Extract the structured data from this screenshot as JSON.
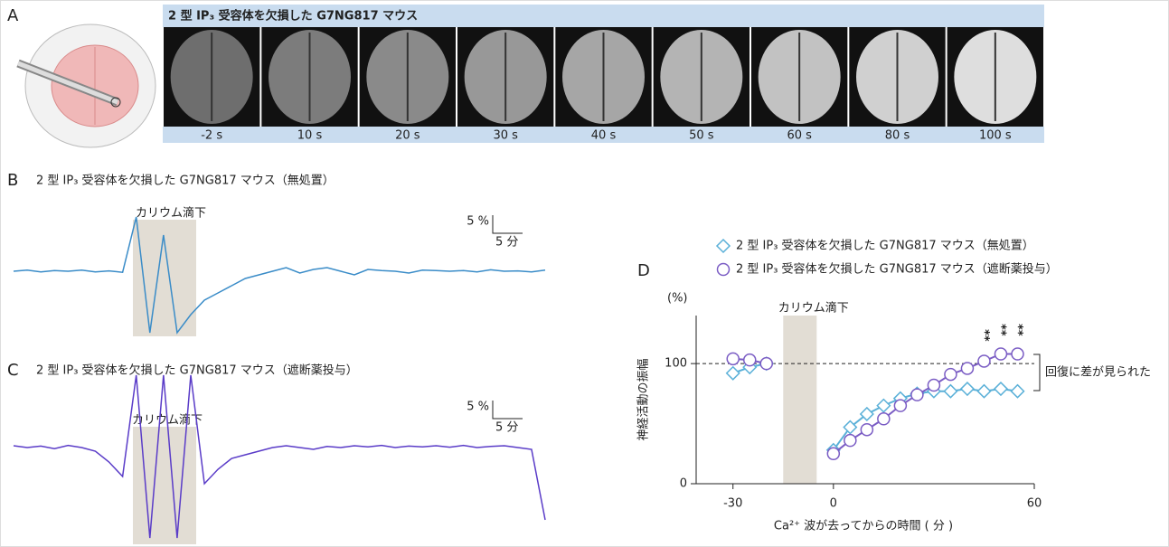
{
  "panel_a": {
    "label": "A",
    "title": "2 型 IP₃ 受容体を欠損した G7NG817 マウス",
    "frames": [
      "-2 s",
      "10 s",
      "20 s",
      "30 s",
      "40 s",
      "50 s",
      "60 s",
      "80 s",
      "100 s"
    ]
  },
  "panel_b": {
    "label": "B",
    "title": "2 型 IP₃ 受容体を欠損した G7NG817 マウス（無処置）",
    "stimulus": "カリウム滴下",
    "scale_y": "5 %",
    "scale_x": "5 分",
    "trace": [
      0,
      0.3,
      -0.2,
      0.2,
      0,
      0.3,
      -0.2,
      0.1,
      -0.3,
      15,
      -17,
      10,
      -17,
      -12,
      -8,
      -6,
      -4,
      -2,
      -1,
      0,
      1,
      -0.5,
      0.5,
      1,
      0,
      -1,
      0.5,
      0.2,
      0,
      -0.5,
      0.3,
      0.2,
      0,
      0.2,
      -0.2,
      0.4,
      0,
      0.1,
      -0.2,
      0.3
    ]
  },
  "panel_c": {
    "label": "C",
    "title": "2 型 IP₃ 受容体を欠損した G7NG817 マウス（遮断薬投与）",
    "stimulus": "カリウム滴下",
    "scale_y": "5 %",
    "scale_x": "5 分",
    "trace": [
      0.5,
      0,
      0.4,
      -0.3,
      0.6,
      0,
      -1,
      -4,
      -8,
      20,
      -25,
      20,
      -25,
      20,
      -10,
      -6,
      -3,
      -2,
      -1,
      0,
      0.5,
      0,
      -0.5,
      0.3,
      0,
      0.5,
      0.2,
      0.6,
      0,
      0.4,
      0.2,
      0.5,
      0.1,
      0.6,
      0,
      0.3,
      0.5,
      0,
      -0.5,
      -20
    ]
  },
  "chart_data": {
    "type": "line",
    "label": "D",
    "y_unit": "(%)",
    "ylabel": "神経活動の振幅",
    "xlabel": "Ca²⁺ 波が去ってからの時間 ( 分 )",
    "xlim": [
      -41,
      60
    ],
    "ylim": [
      0,
      140
    ],
    "xticks": [
      -30,
      0,
      60
    ],
    "yticks": [
      0,
      100
    ],
    "reference_line": 100,
    "stimulus": {
      "label": "カリウム滴下",
      "range": [
        -15,
        -5
      ]
    },
    "annotation": "回復に差が見られた",
    "significance": [
      {
        "x": 45,
        "label": "**"
      },
      {
        "x": 50,
        "label": "**"
      },
      {
        "x": 55,
        "label": "**"
      }
    ],
    "series": [
      {
        "name": "2 型 IP₃ 受容体を欠損した G7NG817 マウス（無処置）",
        "color": "#5ab0d8",
        "marker": "diamond",
        "x": [
          -30,
          -25,
          -20,
          0,
          5,
          10,
          15,
          20,
          25,
          30,
          35,
          40,
          45,
          50,
          55
        ],
        "values": [
          92,
          97,
          100,
          28,
          47,
          58,
          65,
          71,
          75,
          77,
          77,
          79,
          77,
          79,
          77
        ]
      },
      {
        "name": "2 型 IP₃ 受容体を欠損した G7NG817 マウス（遮断薬投与）",
        "color": "#7a5cc4",
        "marker": "circle",
        "x": [
          -30,
          -25,
          -20,
          0,
          5,
          10,
          15,
          20,
          25,
          30,
          35,
          40,
          45,
          50,
          55
        ],
        "values": [
          104,
          103,
          100,
          25,
          36,
          45,
          54,
          65,
          74,
          82,
          91,
          96,
          102,
          108,
          108
        ]
      }
    ]
  }
}
